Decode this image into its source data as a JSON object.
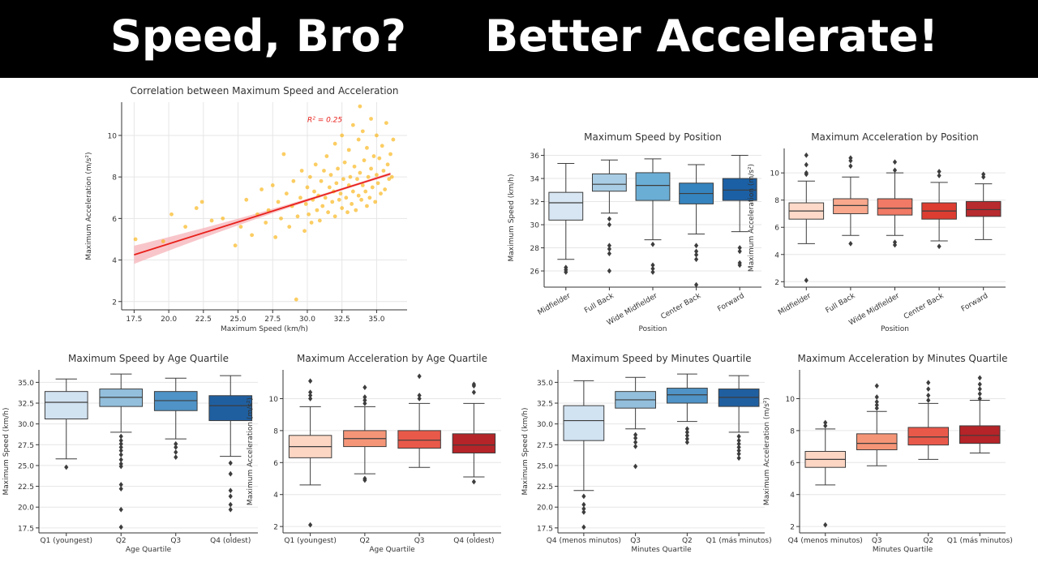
{
  "header": {
    "title_left": "Speed, Bro?",
    "title_right": "Better Accelerate!"
  },
  "chart_data": [
    {
      "id": "scatter",
      "type": "scatter",
      "title": "Correlation between Maximum Speed and Acceleration",
      "xlabel": "Maximum Speed (km/h)",
      "ylabel": "Maximum Acceleration (m/s²)",
      "xlim": [
        16.6,
        37.2
      ],
      "ylim": [
        1.6,
        11.6
      ],
      "xticks": [
        17.5,
        20.0,
        22.5,
        25.0,
        27.5,
        30.0,
        32.5,
        35.0
      ],
      "yticks": [
        2,
        4,
        6,
        8,
        10
      ],
      "grid": true,
      "annotation": "R² = 0.25",
      "point_color": "#f9b81f",
      "fit": {
        "x": [
          17.5,
          36.0
        ],
        "y": [
          4.25,
          8.15
        ],
        "color": "#e8201b",
        "band_color": "#f6b3b8"
      },
      "points": [
        [
          17.6,
          5.0
        ],
        [
          19.6,
          4.9
        ],
        [
          20.2,
          6.2
        ],
        [
          21.2,
          5.6
        ],
        [
          22.0,
          6.5
        ],
        [
          22.4,
          6.8
        ],
        [
          23.1,
          5.9
        ],
        [
          23.9,
          6.0
        ],
        [
          24.8,
          4.7
        ],
        [
          25.2,
          5.6
        ],
        [
          25.6,
          6.9
        ],
        [
          26.0,
          5.2
        ],
        [
          26.4,
          6.2
        ],
        [
          26.7,
          7.4
        ],
        [
          27.0,
          5.8
        ],
        [
          27.2,
          6.4
        ],
        [
          27.5,
          7.6
        ],
        [
          27.7,
          5.1
        ],
        [
          27.9,
          6.8
        ],
        [
          28.1,
          6.0
        ],
        [
          28.3,
          9.1
        ],
        [
          28.5,
          7.2
        ],
        [
          28.7,
          5.6
        ],
        [
          28.9,
          6.6
        ],
        [
          29.0,
          7.8
        ],
        [
          29.2,
          2.1
        ],
        [
          29.3,
          6.1
        ],
        [
          29.5,
          7.0
        ],
        [
          29.6,
          8.3
        ],
        [
          29.8,
          5.4
        ],
        [
          29.9,
          6.7
        ],
        [
          30.0,
          7.5
        ],
        [
          30.1,
          6.2
        ],
        [
          30.2,
          8.0
        ],
        [
          30.3,
          5.8
        ],
        [
          30.4,
          6.9
        ],
        [
          30.5,
          7.3
        ],
        [
          30.6,
          8.6
        ],
        [
          30.7,
          6.4
        ],
        [
          30.8,
          7.1
        ],
        [
          30.9,
          5.9
        ],
        [
          31.0,
          7.8
        ],
        [
          31.1,
          6.6
        ],
        [
          31.2,
          8.3
        ],
        [
          31.3,
          7.0
        ],
        [
          31.4,
          9.0
        ],
        [
          31.5,
          6.3
        ],
        [
          31.6,
          7.5
        ],
        [
          31.7,
          8.1
        ],
        [
          31.8,
          6.8
        ],
        [
          31.9,
          7.3
        ],
        [
          32.0,
          9.6
        ],
        [
          32.0,
          6.1
        ],
        [
          32.1,
          7.7
        ],
        [
          32.2,
          8.4
        ],
        [
          32.3,
          6.9
        ],
        [
          32.4,
          7.2
        ],
        [
          32.5,
          10.0
        ],
        [
          32.5,
          6.5
        ],
        [
          32.6,
          7.9
        ],
        [
          32.7,
          8.7
        ],
        [
          32.8,
          7.0
        ],
        [
          32.9,
          6.3
        ],
        [
          33.0,
          9.3
        ],
        [
          33.0,
          7.6
        ],
        [
          33.1,
          8.0
        ],
        [
          33.2,
          6.7
        ],
        [
          33.3,
          10.5
        ],
        [
          33.3,
          7.3
        ],
        [
          33.4,
          8.5
        ],
        [
          33.5,
          6.4
        ],
        [
          33.6,
          7.9
        ],
        [
          33.7,
          9.8
        ],
        [
          33.7,
          7.1
        ],
        [
          33.8,
          11.4
        ],
        [
          33.8,
          8.2
        ],
        [
          33.9,
          6.9
        ],
        [
          34.0,
          7.6
        ],
        [
          34.0,
          10.2
        ],
        [
          34.1,
          8.8
        ],
        [
          34.2,
          7.3
        ],
        [
          34.3,
          6.6
        ],
        [
          34.3,
          9.4
        ],
        [
          34.4,
          8.0
        ],
        [
          34.5,
          7.0
        ],
        [
          34.6,
          10.8
        ],
        [
          34.6,
          8.4
        ],
        [
          34.7,
          7.5
        ],
        [
          34.8,
          9.0
        ],
        [
          34.9,
          6.8
        ],
        [
          35.0,
          8.1
        ],
        [
          35.0,
          10.0
        ],
        [
          35.1,
          7.7
        ],
        [
          35.2,
          8.9
        ],
        [
          35.3,
          7.2
        ],
        [
          35.4,
          9.5
        ],
        [
          35.5,
          8.3
        ],
        [
          35.6,
          7.4
        ],
        [
          35.7,
          10.6
        ],
        [
          35.8,
          8.6
        ],
        [
          35.9,
          7.9
        ],
        [
          36.0,
          9.1
        ],
        [
          36.1,
          8.0
        ],
        [
          36.2,
          9.8
        ]
      ]
    },
    {
      "id": "speed_position",
      "type": "box",
      "title": "Maximum Speed by Position",
      "xlabel": "Position",
      "ylabel": "Maximum Speed (km/h)",
      "ylim": [
        24.6,
        36.6
      ],
      "yticks": [
        26,
        28,
        30,
        32,
        34,
        36
      ],
      "categories": [
        "Midfielder",
        "Full Back",
        "Wide Midfielder",
        "Center Back",
        "Forward"
      ],
      "boxes": [
        {
          "whislo": 27.0,
          "q1": 30.4,
          "med": 31.9,
          "q3": 32.8,
          "whishi": 35.3,
          "fliers": [
            26.3,
            26.1,
            25.9
          ],
          "color": "#d8e6f3"
        },
        {
          "whislo": 31.0,
          "q1": 32.9,
          "med": 33.5,
          "q3": 34.4,
          "whishi": 35.6,
          "fliers": [
            30.5,
            30.0,
            28.2,
            27.9,
            27.5,
            26.0
          ],
          "color": "#a9cde4"
        },
        {
          "whislo": 28.7,
          "q1": 32.1,
          "med": 33.4,
          "q3": 34.5,
          "whishi": 35.7,
          "fliers": [
            28.3,
            26.5,
            26.2,
            25.9
          ],
          "color": "#6aaed6"
        },
        {
          "whislo": 29.2,
          "q1": 31.8,
          "med": 32.7,
          "q3": 33.6,
          "whishi": 35.2,
          "fliers": [
            28.2,
            27.7,
            27.4,
            27.0,
            24.8
          ],
          "color": "#3584bf"
        },
        {
          "whislo": 29.4,
          "q1": 32.1,
          "med": 33.0,
          "q3": 34.0,
          "whishi": 36.0,
          "fliers": [
            28.0,
            27.7,
            26.7,
            26.5
          ],
          "color": "#1b60a5"
        }
      ]
    },
    {
      "id": "accel_position",
      "type": "box",
      "title": "Maximum Acceleration by Position",
      "xlabel": "Position",
      "ylabel": "Maximum Acceleration (m/s²)",
      "ylim": [
        1.6,
        11.8
      ],
      "yticks": [
        2,
        4,
        6,
        8,
        10
      ],
      "categories": [
        "Midfielder",
        "Full Back",
        "Wide Midfielder",
        "Center Back",
        "Forward"
      ],
      "boxes": [
        {
          "whislo": 4.8,
          "q1": 6.6,
          "med": 7.2,
          "q3": 7.8,
          "whishi": 9.4,
          "fliers": [
            2.1,
            9.9,
            10.0,
            10.6,
            11.3
          ],
          "color": "#fcd9c8"
        },
        {
          "whislo": 5.4,
          "q1": 7.0,
          "med": 7.6,
          "q3": 8.1,
          "whishi": 9.7,
          "fliers": [
            4.8,
            10.5,
            10.9,
            11.1
          ],
          "color": "#f9a88d"
        },
        {
          "whislo": 5.4,
          "q1": 6.9,
          "med": 7.4,
          "q3": 8.1,
          "whishi": 10.0,
          "fliers": [
            4.9,
            4.7,
            10.2,
            10.8
          ],
          "color": "#f07a65"
        },
        {
          "whislo": 5.0,
          "q1": 6.6,
          "med": 7.2,
          "q3": 7.8,
          "whishi": 9.3,
          "fliers": [
            4.6,
            9.8,
            10.1
          ],
          "color": "#dd3c31"
        },
        {
          "whislo": 5.1,
          "q1": 6.8,
          "med": 7.3,
          "q3": 7.9,
          "whishi": 9.2,
          "fliers": [
            9.7,
            9.9
          ],
          "color": "#b72a2d"
        }
      ]
    },
    {
      "id": "speed_age",
      "type": "box",
      "title": "Maximum Speed by Age Quartile",
      "xlabel": "Age Quartile",
      "ylabel": "Maximum Speed (km/h)",
      "ylim": [
        16.9,
        36.5
      ],
      "yticks": [
        17.5,
        20.0,
        22.5,
        25.0,
        27.5,
        30.0,
        32.5,
        35.0
      ],
      "categories": [
        "Q1 (youngest)",
        "Q2",
        "Q3",
        "Q4 (oldest)"
      ],
      "boxes": [
        {
          "whislo": 25.8,
          "q1": 30.6,
          "med": 32.6,
          "q3": 33.9,
          "whishi": 35.4,
          "fliers": [
            24.8
          ],
          "color": "#d1e2f1"
        },
        {
          "whislo": 29.0,
          "q1": 32.1,
          "med": 33.2,
          "q3": 34.2,
          "whishi": 36.0,
          "fliers": [
            28.5,
            28.0,
            27.6,
            27.2,
            26.8,
            26.3,
            25.7,
            25.2,
            24.9,
            22.7,
            22.2,
            19.7,
            17.6
          ],
          "color": "#93bfdc"
        },
        {
          "whislo": 28.2,
          "q1": 31.6,
          "med": 32.8,
          "q3": 33.9,
          "whishi": 35.5,
          "fliers": [
            27.6,
            27.2,
            26.6,
            26.0
          ],
          "color": "#4f93c7"
        },
        {
          "whislo": 26.1,
          "q1": 30.4,
          "med": 32.2,
          "q3": 33.4,
          "whishi": 35.8,
          "fliers": [
            25.3,
            24.0,
            22.0,
            21.3,
            20.3,
            19.7
          ],
          "color": "#1f5fa0"
        }
      ]
    },
    {
      "id": "accel_age",
      "type": "box",
      "title": "Maximum Acceleration by Age Quartile",
      "xlabel": "Age Quartile",
      "ylabel": "Maximum Acceleration (m/s²)",
      "ylim": [
        1.6,
        11.8
      ],
      "yticks": [
        2,
        4,
        6,
        8,
        10
      ],
      "categories": [
        "Q1 (youngest)",
        "Q2",
        "Q3",
        "Q4 (oldest)"
      ],
      "boxes": [
        {
          "whislo": 4.6,
          "q1": 6.3,
          "med": 7.0,
          "q3": 7.7,
          "whishi": 9.5,
          "fliers": [
            2.1,
            10.0,
            10.2,
            10.4,
            11.1
          ],
          "color": "#fcd5c3"
        },
        {
          "whislo": 5.3,
          "q1": 7.0,
          "med": 7.5,
          "q3": 8.0,
          "whishi": 9.5,
          "fliers": [
            5.0,
            4.9,
            9.7,
            9.9,
            10.1,
            10.7
          ],
          "color": "#f59577"
        },
        {
          "whislo": 5.7,
          "q1": 6.9,
          "med": 7.4,
          "q3": 8.0,
          "whishi": 9.7,
          "fliers": [
            10.0,
            10.2,
            11.4
          ],
          "color": "#e9594a"
        },
        {
          "whislo": 5.1,
          "q1": 6.6,
          "med": 7.1,
          "q3": 7.8,
          "whishi": 9.7,
          "fliers": [
            4.8,
            10.4,
            10.8,
            10.9
          ],
          "color": "#b52428"
        }
      ]
    },
    {
      "id": "speed_minutes",
      "type": "box",
      "title": "Maximum Speed by Minutes Quartile",
      "xlabel": "Minutes Quartile",
      "ylabel": "Maximum Speed (km/h)",
      "ylim": [
        16.9,
        36.5
      ],
      "yticks": [
        17.5,
        20.0,
        22.5,
        25.0,
        27.5,
        30.0,
        32.5,
        35.0
      ],
      "categories": [
        "Q4 (menos minutos)",
        "Q3",
        "Q2",
        "Q1 (más minutos)"
      ],
      "boxes": [
        {
          "whislo": 22.0,
          "q1": 28.0,
          "med": 30.4,
          "q3": 32.2,
          "whishi": 35.2,
          "fliers": [
            21.3,
            20.3,
            19.8,
            19.4,
            17.6
          ],
          "color": "#d1e2f1"
        },
        {
          "whislo": 29.4,
          "q1": 31.9,
          "med": 32.9,
          "q3": 33.9,
          "whishi": 35.6,
          "fliers": [
            28.7,
            28.3,
            27.8,
            27.3,
            24.9
          ],
          "color": "#93bfdc"
        },
        {
          "whislo": 30.3,
          "q1": 32.5,
          "med": 33.5,
          "q3": 34.3,
          "whishi": 36.0,
          "fliers": [
            29.4,
            29.0,
            28.6,
            28.2,
            27.8
          ],
          "color": "#4f93c7"
        },
        {
          "whislo": 29.0,
          "q1": 32.1,
          "med": 33.2,
          "q3": 34.2,
          "whishi": 35.8,
          "fliers": [
            28.5,
            28.0,
            27.6,
            27.2,
            26.8,
            26.4,
            25.9
          ],
          "color": "#1f5fa0"
        }
      ]
    },
    {
      "id": "accel_minutes",
      "type": "box",
      "title": "Maximum Acceleration by Minutes Quartile",
      "xlabel": "Minutes Quartile",
      "ylabel": "Maximum Acceleration (m/s²)",
      "ylim": [
        1.6,
        11.8
      ],
      "yticks": [
        2,
        4,
        6,
        8,
        10
      ],
      "categories": [
        "Q4 (menos minutos)",
        "Q3",
        "Q2",
        "Q1 (más minutos)"
      ],
      "boxes": [
        {
          "whislo": 4.6,
          "q1": 5.7,
          "med": 6.2,
          "q3": 6.7,
          "whishi": 8.1,
          "fliers": [
            2.1,
            8.3,
            8.5
          ],
          "color": "#fcd5c3"
        },
        {
          "whislo": 5.8,
          "q1": 6.8,
          "med": 7.2,
          "q3": 7.8,
          "whishi": 9.2,
          "fliers": [
            9.4,
            9.6,
            9.8,
            10.1,
            10.8
          ],
          "color": "#f59577"
        },
        {
          "whislo": 6.2,
          "q1": 7.1,
          "med": 7.6,
          "q3": 8.2,
          "whishi": 9.7,
          "fliers": [
            9.9,
            10.2,
            10.6,
            11.0
          ],
          "color": "#e9594a"
        },
        {
          "whislo": 6.6,
          "q1": 7.2,
          "med": 7.7,
          "q3": 8.3,
          "whishi": 9.9,
          "fliers": [
            10.0,
            10.3,
            10.6,
            10.9,
            11.3
          ],
          "color": "#b52428"
        }
      ]
    }
  ]
}
